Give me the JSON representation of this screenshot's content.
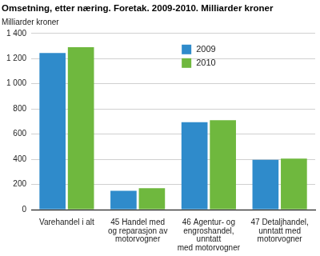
{
  "chart_data": {
    "type": "bar",
    "title": "Omsetning, etter næring. Foretak. 2009-2010. Milliarder kroner",
    "y_label": "Milliarder kroner",
    "categories": [
      "Varehandel i alt",
      "45 Handel med\nog reparasjon av\nmotorvogner",
      "46 Agentur- og\nengroshandel,\nunntatt\nmed motorvogner",
      "47 Detaljhandel,\nunntatt med\nmotorvogner"
    ],
    "series": [
      {
        "name": "2009",
        "color": "#2f8bcb",
        "values": [
          1245,
          150,
          695,
          395
        ]
      },
      {
        "name": "2010",
        "color": "#6fb83e",
        "values": [
          1290,
          170,
          710,
          405
        ]
      }
    ],
    "ylim": [
      0,
      1400
    ],
    "yticks": [
      0,
      200,
      400,
      600,
      800,
      {
        "value": 1000,
        "label": "1 000"
      },
      {
        "value": 1200,
        "label": "1 200"
      },
      {
        "value": 1400,
        "label": "1 400"
      }
    ],
    "grid": true,
    "legend": "top"
  }
}
